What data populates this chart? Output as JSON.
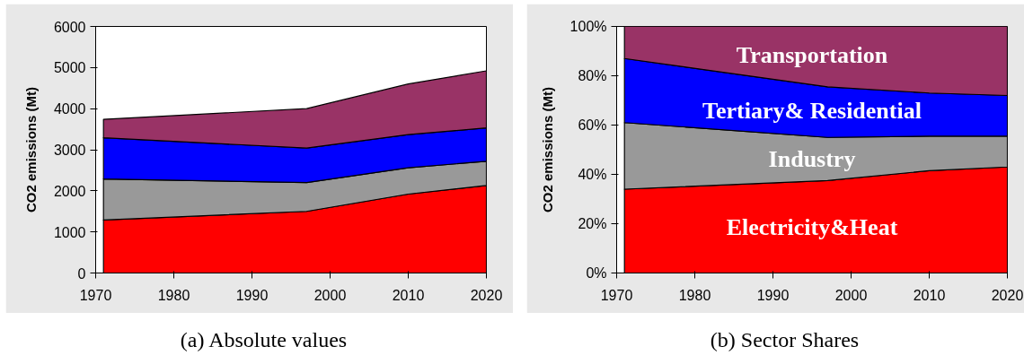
{
  "chart_data": [
    {
      "type": "area",
      "stacked": true,
      "title": "(a) Absolute values",
      "ylabel": "CO2 emissions (Mt)",
      "x": [
        1971,
        1997,
        2010,
        2020
      ],
      "xlim": [
        1970,
        2020
      ],
      "xticks": [
        1970,
        1980,
        1990,
        2000,
        2010,
        2020
      ],
      "ylim": [
        0,
        6000
      ],
      "yticks": [
        0,
        1000,
        2000,
        3000,
        4000,
        5000,
        6000
      ],
      "series": [
        {
          "color": "#ff0000",
          "values": [
            1290,
            1500,
            1920,
            2130
          ]
        },
        {
          "color": "#999999",
          "values": [
            1000,
            700,
            640,
            590
          ]
        },
        {
          "color": "#0000ff",
          "values": [
            1000,
            840,
            810,
            810
          ]
        },
        {
          "color": "#993366",
          "values": [
            450,
            960,
            1230,
            1390
          ]
        }
      ]
    },
    {
      "type": "area",
      "stacked": true,
      "title": "(b) Sector Shares",
      "ylabel": "CO2 emissions (Mt)",
      "x": [
        1971,
        1997,
        2010,
        2020
      ],
      "xlim": [
        1970,
        2020
      ],
      "xticks": [
        1970,
        1980,
        1990,
        2000,
        2010,
        2020
      ],
      "ylim": [
        0,
        100
      ],
      "yticks": [
        {
          "value": 0,
          "label": "0%"
        },
        {
          "value": 20,
          "label": "20%"
        },
        {
          "value": 40,
          "label": "40%"
        },
        {
          "value": 60,
          "label": "60%"
        },
        {
          "value": 80,
          "label": "80%"
        },
        {
          "value": 100,
          "label": "100%"
        }
      ],
      "series": [
        {
          "name": "Electricity&Heat",
          "color": "#ff0000",
          "values": [
            34,
            37.5,
            41.5,
            43
          ]
        },
        {
          "name": "Industry",
          "color": "#999999",
          "values": [
            27,
            17.5,
            14,
            12.5
          ]
        },
        {
          "name": "Tertiary& Residential",
          "color": "#0000ff",
          "values": [
            26,
            20.5,
            17.5,
            16.5
          ]
        },
        {
          "name": "Transportation",
          "color": "#993366",
          "values": [
            13,
            24.5,
            27,
            28
          ]
        }
      ]
    }
  ]
}
